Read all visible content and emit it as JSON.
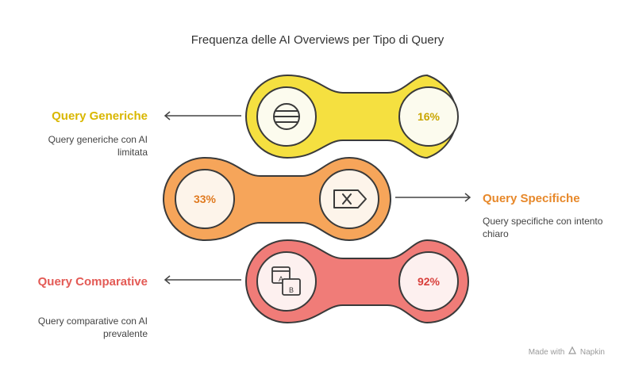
{
  "title": "Frequenza delle AI Overviews per Tipo di Query",
  "rows": [
    {
      "label": "Query Generiche",
      "description": "Query generiche con AI limitata",
      "value": "16%",
      "icon": "list-icon",
      "color": "#f5e040"
    },
    {
      "label": "Query Specifiche",
      "description": "Query specifiche con intento chiaro",
      "value": "33%",
      "icon": "tag-x-icon",
      "color": "#f6a55a"
    },
    {
      "label": "Query Comparative",
      "description": "Query comparative con AI prevalente",
      "value": "92%",
      "icon": "compare-ab-icon",
      "color": "#f07c78"
    }
  ],
  "footer": {
    "made_with": "Made with",
    "brand": "Napkin"
  }
}
